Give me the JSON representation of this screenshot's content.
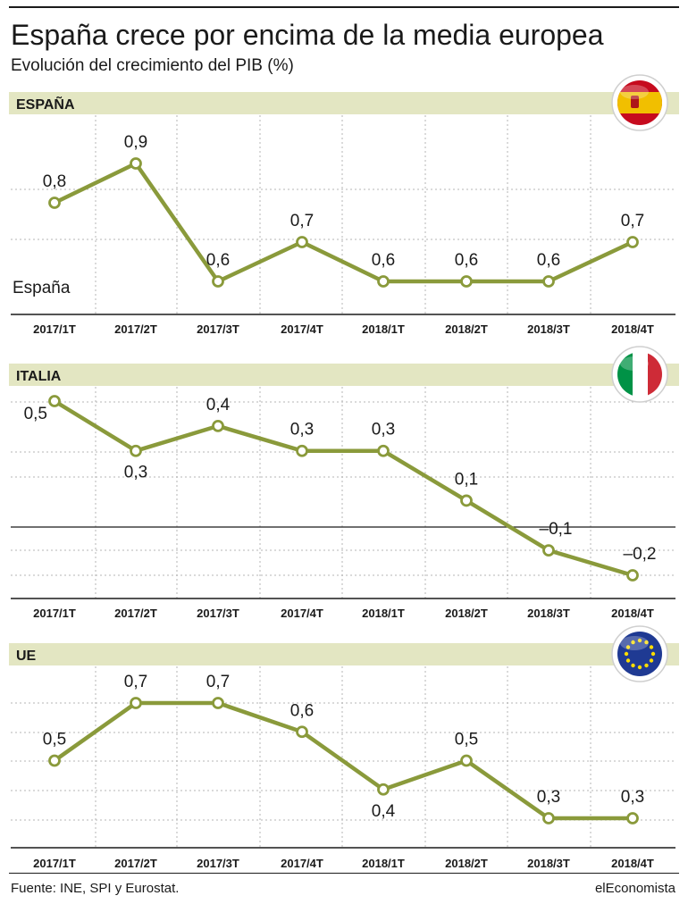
{
  "title": "España crece por encima de la media europea",
  "subtitle": "Evolución del crecimiento del PIB (%)",
  "source": "Fuente: INE, SPI y Eurostat.",
  "brand": "elEconomista",
  "colors": {
    "line": "#8a9a3b",
    "band": "#e3e6c2",
    "grid": "#b5b5b5",
    "axis": "#1a1a1a"
  },
  "chart_data": [
    {
      "type": "line",
      "title": "ESPAÑA",
      "flag_icon": "spain-flag-icon",
      "categories": [
        "2017/1T",
        "2017/2T",
        "2017/3T",
        "2017/4T",
        "2018/1T",
        "2018/2T",
        "2018/3T",
        "2018/4T"
      ],
      "series": [
        {
          "name": "España",
          "values": [
            0.8,
            0.9,
            0.6,
            0.7,
            0.6,
            0.6,
            0.6,
            0.7
          ]
        }
      ],
      "labels": [
        "0,8",
        "0,9",
        "0,6",
        "0,7",
        "0,6",
        "0,6",
        "0,6",
        "0,7"
      ],
      "grid": true
    },
    {
      "type": "line",
      "title": "ITALIA",
      "flag_icon": "italy-flag-icon",
      "categories": [
        "2017/1T",
        "2017/2T",
        "2017/3T",
        "2017/4T",
        "2018/1T",
        "2018/2T",
        "2018/3T",
        "2018/4T"
      ],
      "series": [
        {
          "values": [
            0.5,
            0.3,
            0.4,
            0.3,
            0.3,
            0.1,
            -0.1,
            -0.2
          ]
        }
      ],
      "labels": [
        "0,5",
        "0,3",
        "0,4",
        "0,3",
        "0,3",
        "0,1",
        "–0,1",
        "–0,2"
      ],
      "grid": true
    },
    {
      "type": "line",
      "title": "UE",
      "flag_icon": "eu-flag-icon",
      "categories": [
        "2017/1T",
        "2017/2T",
        "2017/3T",
        "2017/4T",
        "2018/1T",
        "2018/2T",
        "2018/3T",
        "2018/4T"
      ],
      "series": [
        {
          "values": [
            0.5,
            0.7,
            0.7,
            0.6,
            0.4,
            0.5,
            0.3,
            0.3
          ]
        }
      ],
      "labels": [
        "0,5",
        "0,7",
        "0,7",
        "0,6",
        "0,4",
        "0,5",
        "0,3",
        "0,3"
      ],
      "grid": true
    }
  ]
}
